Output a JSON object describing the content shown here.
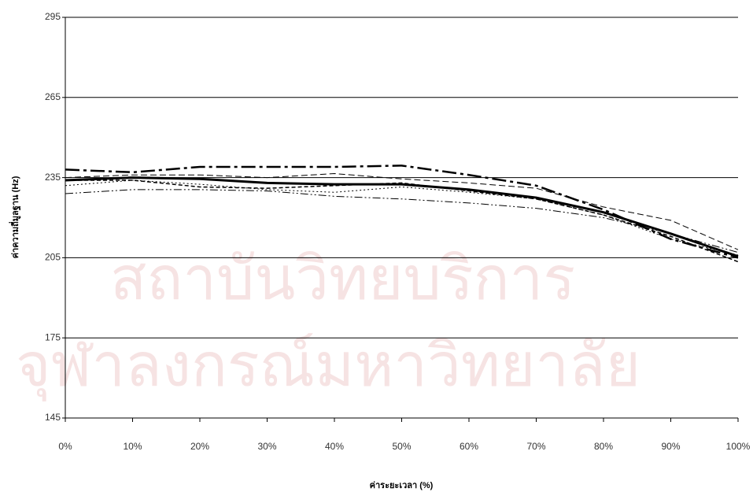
{
  "chart_data": {
    "type": "line",
    "watermark": [
      "สถาบันวิทยบริการ",
      "จุฬาลงกรณ์มหาวิทยาลัย"
    ],
    "x_label": "ค่าระยะเวลา (%)",
    "y_label": "ค่าความถี่มูลฐาน (Hz)",
    "x": [
      0,
      10,
      20,
      30,
      40,
      50,
      60,
      70,
      80,
      90,
      100
    ],
    "xlim": [
      0,
      100
    ],
    "xticks": [
      {
        "value": 0,
        "label": "0%"
      },
      {
        "value": 10,
        "label": "10%"
      },
      {
        "value": 20,
        "label": "20%"
      },
      {
        "value": 30,
        "label": "30%"
      },
      {
        "value": 40,
        "label": "40%"
      },
      {
        "value": 50,
        "label": "50%"
      },
      {
        "value": 60,
        "label": "60%"
      },
      {
        "value": 70,
        "label": "70%"
      },
      {
        "value": 80,
        "label": "80%"
      },
      {
        "value": 90,
        "label": "90%"
      },
      {
        "value": 100,
        "label": "100%"
      }
    ],
    "ylim": [
      145,
      295
    ],
    "yticks": [
      145,
      175,
      205,
      235,
      265,
      295
    ],
    "grid": true,
    "series": [
      {
        "color": "#000000",
        "width": 3,
        "dash": "none",
        "values": [
          234,
          235,
          234.5,
          233,
          232.5,
          232.5,
          230.5,
          227.5,
          222,
          214,
          205.5
        ]
      },
      {
        "color": "#000000",
        "width": 2.5,
        "dash": "18 5 4 5",
        "values": [
          238,
          237,
          239,
          239,
          239,
          239.5,
          236,
          232,
          223,
          212,
          205
        ]
      },
      {
        "color": "#000000",
        "width": 1,
        "dash": "8 4",
        "values": [
          235,
          236,
          236,
          235,
          236.5,
          234.5,
          233,
          231,
          224,
          219,
          208
        ]
      },
      {
        "color": "#000000",
        "width": 1,
        "dash": "2 3",
        "values": [
          232,
          234,
          232.5,
          230.5,
          229.5,
          231.5,
          229.5,
          227,
          221,
          212,
          206
        ]
      },
      {
        "color": "#000000",
        "width": 1,
        "dash": "10 3 2 3 2 3",
        "values": [
          229,
          230.5,
          230.5,
          230,
          228,
          227,
          225.5,
          223.5,
          220,
          214,
          207
        ]
      },
      {
        "color": "#000000",
        "width": 1.5,
        "dash": "5 3",
        "values": [
          234,
          234,
          231.5,
          231,
          232,
          233,
          230,
          227,
          221,
          213,
          203.5
        ]
      }
    ]
  }
}
